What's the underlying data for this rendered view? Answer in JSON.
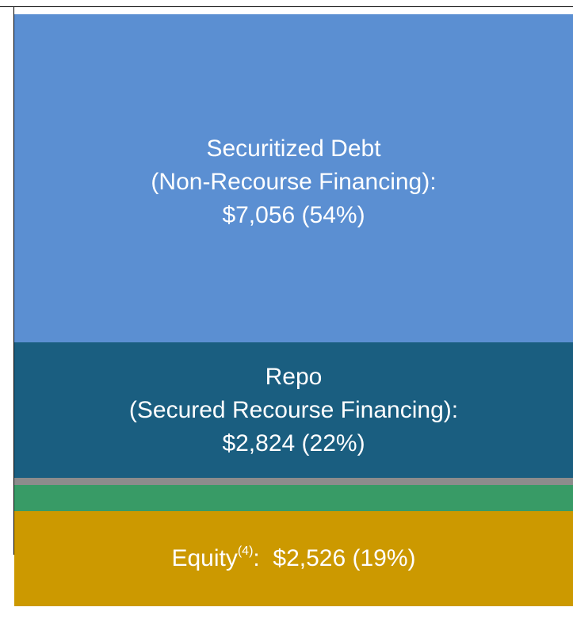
{
  "blocks": [
    {
      "lines": [
        "Securitized Debt",
        "(Non-Recourse Financing):",
        "$7,056 (54%)"
      ]
    },
    {
      "lines": [
        "Repo",
        "(Secured Recourse Financing):",
        "$2,824 (22%)"
      ]
    },
    {
      "label": "Equity",
      "note": "(4)",
      "amount": ":  $2,526 (19%)"
    }
  ]
}
